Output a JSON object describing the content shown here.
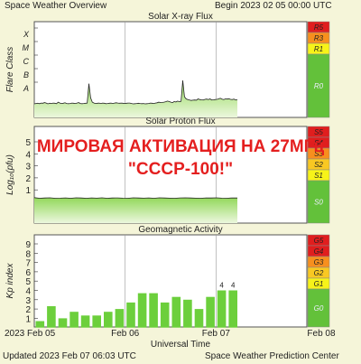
{
  "header": {
    "title": "Space Weather Overview",
    "begin": "Begin 2023 02 05 00:00 UTC"
  },
  "footer": {
    "updated": "Updated 2023 Feb 07 06:03 UTC",
    "center": "Space Weather Prediction Center"
  },
  "overlay_text": [
    "МИРОВАЯ АКТИВАЦИЯ НА 27МГц",
    "\"СССР-100!\""
  ],
  "colors": {
    "background": "#f5f5d9",
    "green_fill": "#92d85a",
    "scale_green": "#63c13a",
    "scale_yellow": "#f7f319",
    "scale_gold": "#f9c822",
    "scale_orange": "#f78f1e",
    "scale_red": "#e01e1e",
    "overlay_red": "#e41f1f",
    "bar_green": "#6ccf3c"
  },
  "chart_data": [
    {
      "type": "line",
      "title": "Solar X-ray Flux",
      "ylabel": "Flare Class",
      "yticks": [
        "X",
        "M",
        "C",
        "B",
        "A"
      ],
      "scale_labels": [
        "R5",
        "R3",
        "R1",
        "R0"
      ],
      "series": [
        {
          "values": [
            0.62,
            0.64,
            0.65,
            0.63,
            0.66,
            0.65,
            0.68,
            0.66,
            0.62,
            0.65,
            0.64,
            0.66,
            0.65,
            0.63,
            0.7,
            0.66,
            0.64,
            0.65,
            0.67,
            0.64,
            0.63,
            0.64,
            0.66,
            0.65,
            0.64,
            0.66,
            0.68,
            0.64,
            0.63,
            0.64,
            0.65,
            0.66,
            1.55,
            0.9,
            0.7,
            0.66,
            0.64,
            0.65,
            0.66,
            0.64,
            0.66,
            0.65,
            0.63,
            0.64,
            0.65,
            0.66,
            0.64,
            0.66,
            0.67,
            0.66,
            0.65,
            0.66,
            0.65,
            0.64,
            0.65,
            0.66,
            0.66,
            0.64,
            0.62,
            0.63,
            0.64,
            0.65,
            0.64,
            0.63,
            0.64,
            0.62,
            0.63,
            0.64,
            0.66,
            0.65,
            0.64,
            0.66,
            0.67,
            0.7,
            0.68,
            0.69,
            0.7,
            0.72,
            0.75,
            0.73,
            0.7,
            0.68,
            0.73,
            0.71,
            0.75,
            0.72,
            0.74,
            1.7,
            0.95,
            0.85,
            0.82,
            0.8,
            0.78,
            0.79,
            0.8,
            0.79,
            0.85,
            0.82,
            0.81,
            0.8,
            0.83,
            0.84,
            0.82,
            0.85,
            0.8,
            0.81,
            0.82,
            0.83,
            0.85,
            0.88,
            0.84,
            0.82,
            0.85,
            0.84,
            0.86,
            0.83,
            0.82,
            0.84,
            0.8,
            0.82
          ]
        }
      ]
    },
    {
      "type": "line",
      "title": "Solar Proton Flux",
      "ylabel": "Log₁₀(pfu)",
      "yticks": [
        "5",
        "4",
        "3",
        "2",
        "1"
      ],
      "scale_labels": [
        "S5",
        "S4",
        "S3",
        "S2",
        "S1",
        "S0"
      ],
      "series": [
        {
          "values": [
            -0.65,
            -0.7,
            -0.68,
            -0.66,
            -0.7,
            -0.69,
            -0.67,
            -0.7,
            -0.66,
            -0.68,
            -0.7,
            -0.67,
            -0.69,
            -0.66,
            -0.7,
            -0.68,
            -0.67,
            -0.69,
            -0.7,
            -0.66,
            -0.68,
            -0.69,
            -0.67,
            -0.7,
            -0.66,
            -0.68,
            -0.69,
            -0.7,
            -0.67,
            -0.66,
            -0.68,
            -0.69,
            -0.7,
            -0.67,
            -0.68,
            -0.66,
            -0.69,
            -0.7,
            -0.67,
            -0.68
          ]
        }
      ]
    },
    {
      "type": "bar",
      "title": "Geomagnetic Activity",
      "ylabel": "Kp index",
      "xlabel": "Universal Time",
      "yticks": [
        "9",
        "8",
        "7",
        "6",
        "5",
        "4",
        "3",
        "2",
        "1"
      ],
      "scale_labels": [
        "G5",
        "G4",
        "G3",
        "G2",
        "G1",
        "G0"
      ],
      "xticks": [
        "2023 Feb 05",
        "Feb 06",
        "Feb 07",
        "Feb 08"
      ],
      "values": [
        0.7,
        2.3,
        1.0,
        1.7,
        1.3,
        1.3,
        1.7,
        2.0,
        2.7,
        3.7,
        3.7,
        2.7,
        3.3,
        3.0,
        2.0,
        3.3,
        4.0,
        4.0
      ],
      "bar_labels": [
        "",
        "",
        "",
        "",
        "",
        "",
        "",
        "",
        "",
        "",
        "",
        "",
        "",
        "",
        "",
        "",
        "4",
        "4"
      ]
    }
  ]
}
